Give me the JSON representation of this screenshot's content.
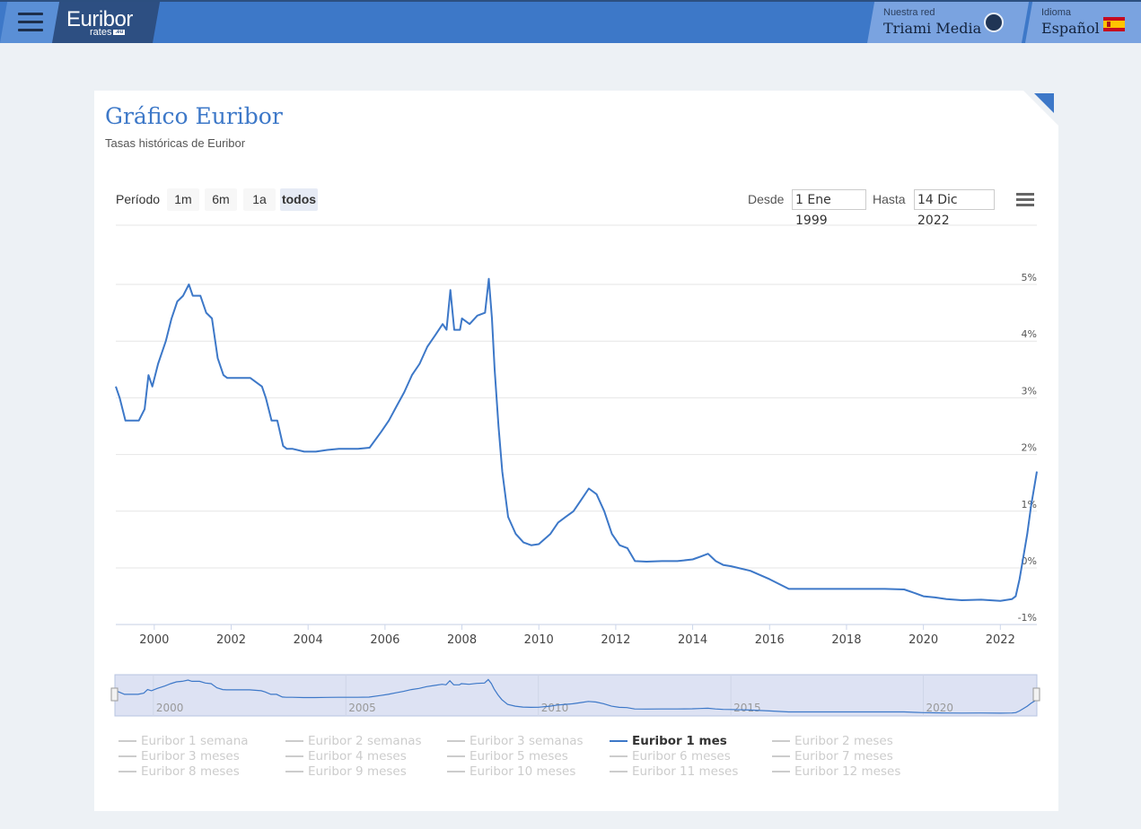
{
  "header": {
    "logo_main": "Euribor",
    "logo_sub": "rates",
    "logo_badge": ".eu",
    "network_label": "Nuestra red",
    "network_name": "Triami Media",
    "language_label": "Idioma",
    "language_name": "Español"
  },
  "card": {
    "title": "Gráfico Euribor",
    "subtitle": "Tasas históricas de Euribor"
  },
  "range_selector": {
    "label": "Período",
    "buttons": [
      "1m",
      "6m",
      "1a",
      "todos"
    ],
    "selected": "todos",
    "from_label": "Desde",
    "from_value": "1 Ene 1999",
    "to_label": "Hasta",
    "to_value": "14 Dic 2022"
  },
  "navigator": {
    "tick_labels": [
      "2000",
      "2005",
      "2010",
      "2015",
      "2020"
    ]
  },
  "colors": {
    "series": "#3d78c8",
    "header": "#3d78c8",
    "inactive": "#cccccc"
  },
  "chart_data": {
    "type": "line",
    "title": "",
    "xlabel": "",
    "ylabel": "",
    "xlim": [
      1999.0,
      2022.95
    ],
    "ylim": [
      -1,
      5
    ],
    "x_ticks": [
      "2000",
      "2002",
      "2004",
      "2006",
      "2008",
      "2010",
      "2012",
      "2014",
      "2016",
      "2018",
      "2020",
      "2022"
    ],
    "y_ticks": [
      "-1%",
      "0%",
      "1%",
      "2%",
      "3%",
      "4%",
      "5%"
    ],
    "grid": true,
    "legend": {
      "placement": "bottom",
      "entries": [
        "Euribor 1 semana",
        "Euribor 2 semanas",
        "Euribor 3 semanas",
        "Euribor 1 mes",
        "Euribor 2 meses",
        "Euribor 3 meses",
        "Euribor 4 meses",
        "Euribor 5 meses",
        "Euribor 6 meses",
        "Euribor 7 meses",
        "Euribor 8 meses",
        "Euribor 9 meses",
        "Euribor 10 meses",
        "Euribor 11 meses",
        "Euribor 12 meses"
      ],
      "active": "Euribor 1 mes"
    },
    "series": [
      {
        "name": "Euribor 1 mes",
        "x": [
          1999.0,
          1999.1,
          1999.25,
          1999.4,
          1999.6,
          1999.75,
          1999.85,
          1999.95,
          2000.1,
          2000.3,
          2000.45,
          2000.6,
          2000.75,
          2000.9,
          2001.0,
          2001.2,
          2001.35,
          2001.5,
          2001.65,
          2001.8,
          2001.9,
          2002.0,
          2002.2,
          2002.5,
          2002.8,
          2002.9,
          2003.05,
          2003.2,
          2003.35,
          2003.45,
          2003.6,
          2003.9,
          2004.2,
          2004.5,
          2004.8,
          2005.0,
          2005.3,
          2005.6,
          2005.9,
          2006.1,
          2006.3,
          2006.5,
          2006.7,
          2006.9,
          2007.1,
          2007.3,
          2007.5,
          2007.6,
          2007.7,
          2007.8,
          2007.95,
          2008.0,
          2008.2,
          2008.4,
          2008.6,
          2008.7,
          2008.78,
          2008.85,
          2008.95,
          2009.05,
          2009.2,
          2009.4,
          2009.6,
          2009.8,
          2010.0,
          2010.3,
          2010.5,
          2010.7,
          2010.9,
          2011.1,
          2011.3,
          2011.5,
          2011.7,
          2011.9,
          2012.1,
          2012.3,
          2012.5,
          2012.8,
          2013.2,
          2013.6,
          2014.0,
          2014.2,
          2014.4,
          2014.6,
          2014.8,
          2015.0,
          2015.5,
          2016.0,
          2016.5,
          2017.0,
          2017.5,
          2018.0,
          2018.5,
          2019.0,
          2019.5,
          2019.8,
          2020.0,
          2020.3,
          2020.6,
          2021.0,
          2021.5,
          2022.0,
          2022.3,
          2022.4,
          2022.5,
          2022.6,
          2022.7,
          2022.8,
          2022.9,
          2022.95
        ],
        "y": [
          3.2,
          3.0,
          2.6,
          2.6,
          2.6,
          2.8,
          3.4,
          3.2,
          3.6,
          4.0,
          4.4,
          4.7,
          4.8,
          5.0,
          4.8,
          4.8,
          4.5,
          4.4,
          3.7,
          3.4,
          3.35,
          3.35,
          3.35,
          3.35,
          3.2,
          3.0,
          2.6,
          2.6,
          2.15,
          2.1,
          2.1,
          2.05,
          2.05,
          2.08,
          2.1,
          2.1,
          2.1,
          2.12,
          2.4,
          2.6,
          2.85,
          3.1,
          3.4,
          3.6,
          3.9,
          4.1,
          4.3,
          4.2,
          4.9,
          4.2,
          4.2,
          4.4,
          4.3,
          4.45,
          4.5,
          5.1,
          4.4,
          3.5,
          2.5,
          1.7,
          0.9,
          0.6,
          0.45,
          0.4,
          0.42,
          0.6,
          0.8,
          0.9,
          1.0,
          1.2,
          1.4,
          1.3,
          1.0,
          0.6,
          0.4,
          0.35,
          0.12,
          0.11,
          0.12,
          0.12,
          0.15,
          0.2,
          0.25,
          0.12,
          0.05,
          0.03,
          -0.05,
          -0.2,
          -0.37,
          -0.37,
          -0.37,
          -0.37,
          -0.37,
          -0.37,
          -0.38,
          -0.45,
          -0.5,
          -0.52,
          -0.55,
          -0.57,
          -0.56,
          -0.58,
          -0.55,
          -0.5,
          -0.2,
          0.2,
          0.6,
          1.1,
          1.5,
          1.7
        ]
      }
    ]
  }
}
